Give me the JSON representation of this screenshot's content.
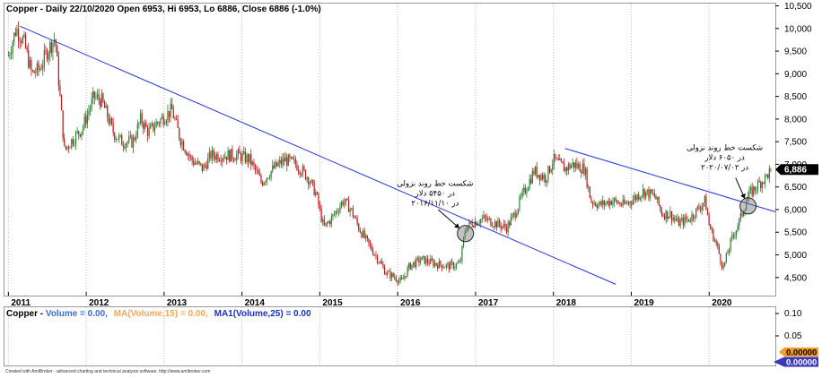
{
  "header": {
    "main": "Copper - Daily 22/10/2020 Open 6953, Hi 6953, Lo 6886, Close 6886 (-1.0%)",
    "volume_prefix": "Copper - ",
    "volume_parts": [
      {
        "text": "Volume = 0.00,",
        "color": "#3a6fd8"
      },
      {
        "text": "MA(Volume,15) = 0.00,",
        "color": "#f2a65a"
      },
      {
        "text": "MA1(Volume,25) = 0.00",
        "color": "#1a2fcc"
      }
    ]
  },
  "footer": "Created with AmiBroker - advanced charting and technical analysis software. http://www.amibroker.com",
  "colors": {
    "up": "#2e7d32",
    "down": "#b71c1c",
    "trendline": "#2233dd",
    "last_price_bg": "#000000",
    "vol_badge1": "#f59b2a",
    "vol_badge2": "#3c37b8"
  },
  "chart_data": {
    "type": "candlestick",
    "title": "Copper - Daily 22/10/2020 Open 6953, Hi 6953, Lo 6886, Close 6886 (-1.0%)",
    "x_tick_labels": [
      "2011",
      "2012",
      "2013",
      "2014",
      "2015",
      "2016",
      "2017",
      "2018",
      "2019",
      "2020"
    ],
    "y_tick_labels": [
      "10,500",
      "10,000",
      "9,500",
      "9,000",
      "8,500",
      "8,000",
      "7,500",
      "7,000",
      "6,500",
      "6,000",
      "5,500",
      "5,000",
      "4,500"
    ],
    "y_ticks": [
      10500,
      10000,
      9500,
      9000,
      8500,
      8000,
      7500,
      7000,
      6500,
      6000,
      5500,
      5000,
      4500
    ],
    "ylim": [
      4100,
      10550
    ],
    "xlim": [
      2010.95,
      2020.85
    ],
    "last_price": 6886,
    "last_price_label": "6,886",
    "price_path": [
      [
        2011.0,
        9400
      ],
      [
        2011.1,
        10000
      ],
      [
        2011.2,
        9700
      ],
      [
        2011.3,
        9000
      ],
      [
        2011.4,
        9100
      ],
      [
        2011.5,
        9500
      ],
      [
        2011.6,
        9800
      ],
      [
        2011.72,
        7300
      ],
      [
        2011.8,
        7500
      ],
      [
        2011.95,
        7800
      ],
      [
        2012.1,
        8500
      ],
      [
        2012.2,
        8400
      ],
      [
        2012.35,
        7700
      ],
      [
        2012.45,
        7500
      ],
      [
        2012.6,
        7500
      ],
      [
        2012.7,
        8000
      ],
      [
        2012.8,
        7700
      ],
      [
        2012.9,
        7900
      ],
      [
        2013.1,
        8200
      ],
      [
        2013.2,
        7600
      ],
      [
        2013.35,
        7100
      ],
      [
        2013.5,
        6900
      ],
      [
        2013.6,
        7200
      ],
      [
        2013.8,
        7200
      ],
      [
        2013.95,
        7200
      ],
      [
        2014.1,
        7100
      ],
      [
        2014.25,
        6600
      ],
      [
        2014.4,
        6900
      ],
      [
        2014.55,
        7100
      ],
      [
        2014.7,
        7000
      ],
      [
        2014.85,
        6700
      ],
      [
        2014.95,
        6350
      ],
      [
        2015.05,
        5600
      ],
      [
        2015.15,
        5800
      ],
      [
        2015.3,
        6200
      ],
      [
        2015.4,
        6000
      ],
      [
        2015.5,
        5600
      ],
      [
        2015.6,
        5300
      ],
      [
        2015.75,
        4900
      ],
      [
        2015.85,
        4600
      ],
      [
        2015.97,
        4500
      ],
      [
        2016.05,
        4400
      ],
      [
        2016.15,
        4750
      ],
      [
        2016.3,
        4900
      ],
      [
        2016.5,
        4800
      ],
      [
        2016.65,
        4750
      ],
      [
        2016.8,
        4800
      ],
      [
        2016.87,
        5600
      ],
      [
        2016.95,
        5700
      ],
      [
        2017.1,
        5800
      ],
      [
        2017.25,
        5700
      ],
      [
        2017.4,
        5600
      ],
      [
        2017.5,
        5900
      ],
      [
        2017.6,
        6300
      ],
      [
        2017.75,
        6850
      ],
      [
        2017.9,
        6700
      ],
      [
        2018.0,
        7100
      ],
      [
        2018.15,
        6900
      ],
      [
        2018.25,
        7000
      ],
      [
        2018.4,
        6900
      ],
      [
        2018.48,
        6200
      ],
      [
        2018.6,
        6100
      ],
      [
        2018.75,
        6200
      ],
      [
        2018.9,
        6100
      ],
      [
        2019.0,
        6200
      ],
      [
        2019.15,
        6400
      ],
      [
        2019.3,
        6300
      ],
      [
        2019.4,
        5900
      ],
      [
        2019.5,
        5900
      ],
      [
        2019.6,
        5700
      ],
      [
        2019.75,
        5800
      ],
      [
        2019.85,
        6000
      ],
      [
        2019.95,
        6200
      ],
      [
        2020.0,
        5650
      ],
      [
        2020.1,
        5200
      ],
      [
        2020.18,
        4700
      ],
      [
        2020.28,
        5300
      ],
      [
        2020.4,
        5800
      ],
      [
        2020.5,
        6300
      ],
      [
        2020.6,
        6500
      ],
      [
        2020.72,
        6700
      ],
      [
        2020.8,
        6886
      ]
    ],
    "trendlines": [
      {
        "from": [
          2011.15,
          10050
        ],
        "to": [
          2018.8,
          4350
        ]
      },
      {
        "from": [
          2018.15,
          7350
        ],
        "to": [
          2020.85,
          5950
        ]
      }
    ],
    "annotations": [
      {
        "lines": [
          "شکست خط روند نزولی",
          "در ۵۴۵۰ دلار",
          "در ۲۰۱۶/۱۱/۱۰"
        ],
        "anchor": [
          2016.48,
          6520
        ],
        "marker": [
          2016.87,
          5470
        ],
        "arrow_from": [
          2016.52,
          6000
        ]
      },
      {
        "lines": [
          "شکست خط روند نزولی",
          "در ۶۰۵۰ دلار",
          "در ۲۰۲۰/۰۷/۰۲"
        ],
        "anchor": [
          2020.2,
          7320
        ],
        "marker": [
          2020.5,
          6080
        ],
        "arrow_from": [
          2020.34,
          6700
        ]
      }
    ],
    "volume_panel": {
      "y_tick_labels": [
        "0.10",
        "0.05"
      ],
      "badges": [
        "0.00000",
        "0.00000"
      ]
    }
  }
}
